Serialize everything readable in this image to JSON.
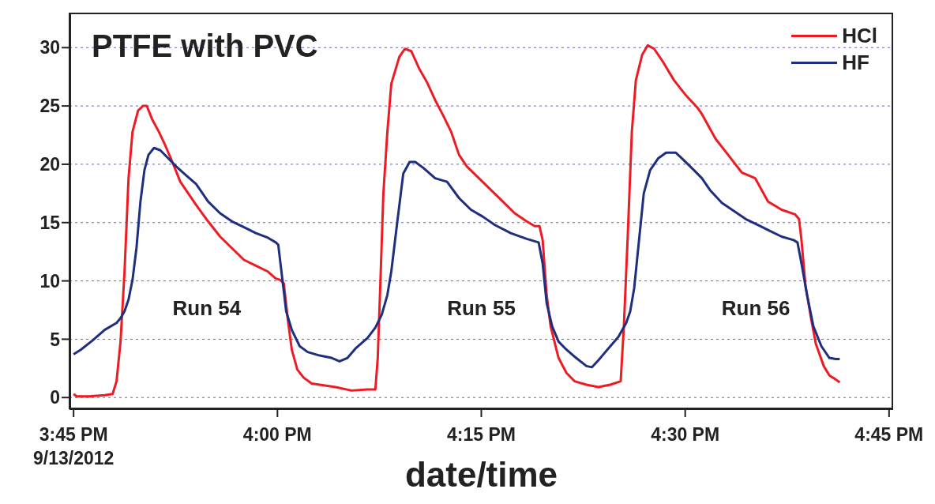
{
  "chart_data": {
    "type": "line",
    "title": "PTFE with PVC",
    "xlabel": "date/time",
    "xlim": [
      15.745,
      16.755
    ],
    "ylim": [
      -1,
      33
    ],
    "xticks": [
      {
        "value": 15.75,
        "label": "3:45 PM\n9/13/2012"
      },
      {
        "value": 16,
        "label": "4:00 PM"
      },
      {
        "value": 16.25,
        "label": "4:15 PM"
      },
      {
        "value": 16.5,
        "label": "4:30 PM"
      },
      {
        "value": 16.75,
        "label": "4:45 PM"
      }
    ],
    "yticks": [
      0,
      5,
      10,
      15,
      20,
      25,
      30
    ],
    "grid": "y",
    "legend": "top right",
    "marker": "none",
    "line_style": "solid",
    "annotations": [
      "Run 54",
      "Run 55",
      "Run 56"
    ],
    "series": [
      {
        "name": "HCl",
        "color": "#ed1c24",
        "x": [
          15.75,
          15.7539,
          15.7686,
          15.7881,
          15.7979,
          15.8027,
          15.8076,
          15.8125,
          15.8174,
          15.8223,
          15.8291,
          15.835,
          15.8398,
          15.8467,
          15.8545,
          15.8613,
          15.8711,
          15.8809,
          15.8877,
          15.9004,
          15.915,
          15.9297,
          15.9443,
          15.959,
          15.9736,
          15.9883,
          15.998,
          16.0029,
          16.0078,
          16.0127,
          16.0176,
          16.0244,
          16.0322,
          16.042,
          16.0518,
          16.0713,
          16.0908,
          16.1104,
          16.1201,
          16.123,
          16.126,
          16.1299,
          16.1348,
          16.1396,
          16.1494,
          16.1563,
          16.1641,
          16.1738,
          16.1836,
          16.1934,
          16.2031,
          16.2129,
          16.2227,
          16.2324,
          16.2471,
          16.2617,
          16.2764,
          16.291,
          16.3057,
          16.3154,
          16.3213,
          16.3252,
          16.3301,
          16.335,
          16.3447,
          16.3545,
          16.3643,
          16.3789,
          16.3936,
          16.4082,
          16.4209,
          16.4248,
          16.4297,
          16.4346,
          16.4395,
          16.4473,
          16.4541,
          16.4619,
          16.4717,
          16.4863,
          16.501,
          16.5156,
          16.5205,
          16.5371,
          16.5527,
          16.5693,
          16.5859,
          16.6016,
          16.6182,
          16.6348,
          16.6396,
          16.6426,
          16.6475,
          16.6543,
          16.6602,
          16.6699,
          16.6768,
          16.6836,
          16.6895
        ],
        "values": [
          0.3,
          0.1,
          0.1,
          0.2,
          0.3,
          1.4,
          4.8,
          10.8,
          18.8,
          22.8,
          24.6,
          25.0,
          25.0,
          23.8,
          22.8,
          21.8,
          20.2,
          18.5,
          17.8,
          16.5,
          15.1,
          13.8,
          12.8,
          11.8,
          11.3,
          10.8,
          10.2,
          10.1,
          9.8,
          6.7,
          4.1,
          2.4,
          1.7,
          1.2,
          1.1,
          0.9,
          0.6,
          0.7,
          0.7,
          3.4,
          9.4,
          17.5,
          22.8,
          26.9,
          29.2,
          29.9,
          29.7,
          28.2,
          27.0,
          25.5,
          24.2,
          22.8,
          20.8,
          19.8,
          18.8,
          17.8,
          16.8,
          15.8,
          15.1,
          14.7,
          14.7,
          13.5,
          8.8,
          6.1,
          3.4,
          2.1,
          1.4,
          1.1,
          0.9,
          1.1,
          1.4,
          6.1,
          14.1,
          22.8,
          27.2,
          29.4,
          30.2,
          29.9,
          28.9,
          27.2,
          25.9,
          24.8,
          24.3,
          22.2,
          20.8,
          19.3,
          18.8,
          16.8,
          16.1,
          15.7,
          15.3,
          13.5,
          9.6,
          6.8,
          4.6,
          2.7,
          1.9,
          1.6,
          1.3
        ]
      },
      {
        "name": "HF",
        "color": "#1f2f7f",
        "x": [
          15.75,
          15.7588,
          15.7734,
          15.7881,
          15.8027,
          15.8076,
          15.8125,
          15.8174,
          15.8223,
          15.8271,
          15.832,
          15.8369,
          15.8418,
          15.8486,
          15.8564,
          15.8662,
          15.876,
          15.8857,
          15.9004,
          15.915,
          15.9297,
          15.9443,
          15.959,
          15.9736,
          15.9883,
          15.998,
          16.001,
          16.0049,
          16.0107,
          16.0176,
          16.0273,
          16.0371,
          16.0518,
          16.0664,
          16.0762,
          16.0859,
          16.0957,
          16.1104,
          16.1201,
          16.1279,
          16.1348,
          16.1396,
          16.1465,
          16.1543,
          16.1621,
          16.1689,
          16.1787,
          16.1934,
          16.208,
          16.2227,
          16.2373,
          16.252,
          16.2666,
          16.2861,
          16.3057,
          16.3203,
          16.3252,
          16.3301,
          16.3369,
          16.3447,
          16.3545,
          16.3662,
          16.3789,
          16.3857,
          16.3936,
          16.4082,
          16.418,
          16.4277,
          16.4326,
          16.4375,
          16.4424,
          16.4492,
          16.457,
          16.4668,
          16.4766,
          16.4883,
          16.4961,
          16.5107,
          16.5205,
          16.5303,
          16.5449,
          16.5596,
          16.5742,
          16.5889,
          16.6035,
          16.6182,
          16.6328,
          16.6377,
          16.6426,
          16.6494,
          16.6572,
          16.667,
          16.6768,
          16.6846,
          16.6895
        ],
        "values": [
          3.7,
          4.1,
          4.9,
          5.8,
          6.4,
          6.8,
          7.4,
          8.4,
          10.1,
          12.8,
          16.8,
          19.5,
          20.8,
          21.4,
          21.2,
          20.5,
          19.8,
          19.2,
          18.3,
          16.8,
          15.8,
          15.1,
          14.6,
          14.1,
          13.7,
          13.3,
          13.1,
          10.8,
          7.4,
          5.8,
          4.4,
          3.9,
          3.6,
          3.4,
          3.1,
          3.4,
          4.2,
          5.1,
          6.0,
          7.1,
          8.8,
          10.8,
          14.8,
          19.2,
          20.2,
          20.2,
          19.7,
          18.8,
          18.5,
          17.1,
          16.1,
          15.5,
          14.8,
          14.1,
          13.6,
          13.3,
          11.5,
          8.1,
          6.1,
          4.8,
          4.1,
          3.4,
          2.7,
          2.6,
          3.2,
          4.4,
          5.2,
          6.4,
          7.4,
          9.4,
          12.8,
          17.5,
          19.5,
          20.5,
          21.0,
          21.0,
          20.5,
          19.5,
          18.8,
          17.8,
          16.7,
          16.0,
          15.3,
          14.8,
          14.3,
          13.8,
          13.5,
          13.3,
          11.5,
          8.8,
          6.1,
          4.4,
          3.4,
          3.3,
          3.3
        ]
      }
    ]
  }
}
